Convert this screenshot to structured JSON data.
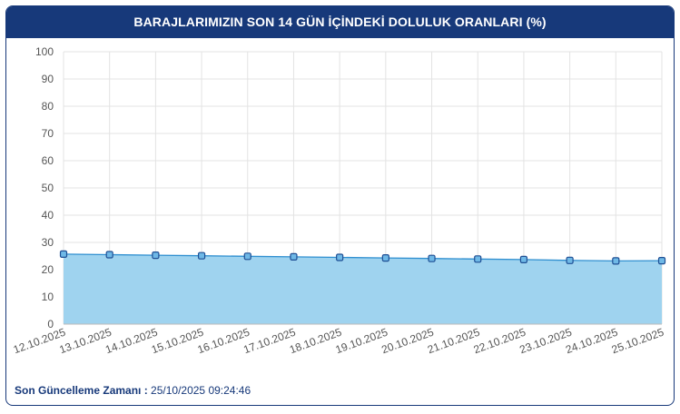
{
  "header": {
    "title": "BARAJLARIMIZIN SON 14 GÜN İÇİNDEKİ DOLULUK ORANLARI (%)"
  },
  "footer": {
    "label": "Son Güncelleme Zamanı :",
    "value": "25/10/2025 09:24:46"
  },
  "colors": {
    "header_bg": "#17397a",
    "area_fill": "#9fd3ef",
    "line": "#2f8fd0",
    "marker_fill": "#6fb8e6",
    "marker_stroke": "#1f4f94"
  },
  "chart_data": {
    "type": "area",
    "title": "BARAJLARIMIZIN SON 14 GÜN İÇİNDEKİ DOLULUK ORANLARI (%)",
    "xlabel": "",
    "ylabel": "",
    "ylim": [
      0,
      100
    ],
    "yticks": [
      0,
      10,
      20,
      30,
      40,
      50,
      60,
      70,
      80,
      90,
      100
    ],
    "grid": true,
    "x": [
      "12.10.2025",
      "13.10.2025",
      "14.10.2025",
      "15.10.2025",
      "16.10.2025",
      "17.10.2025",
      "18.10.2025",
      "19.10.2025",
      "20.10.2025",
      "21.10.2025",
      "22.10.2025",
      "23.10.2025",
      "24.10.2025",
      "25.10.2025"
    ],
    "series": [
      {
        "values": [
          25.7,
          25.5,
          25.3,
          25.1,
          24.9,
          24.7,
          24.5,
          24.3,
          24.1,
          23.9,
          23.7,
          23.4,
          23.2,
          23.3
        ]
      }
    ]
  }
}
